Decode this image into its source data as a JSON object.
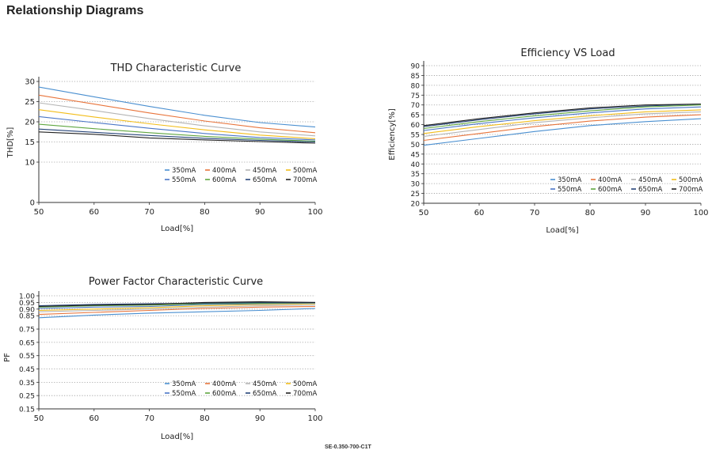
{
  "page": {
    "title": "Relationship Diagrams",
    "footer_model": "SE-0.350-700-C1T"
  },
  "chart_data": [
    {
      "id": "thd",
      "type": "line",
      "title": "THD Characteristic Curve",
      "xlabel": "Load[%]",
      "ylabel": "THD[%]",
      "xlim": [
        50,
        100
      ],
      "ylim": [
        0,
        30
      ],
      "x_ticks": [
        50,
        60,
        70,
        80,
        90,
        100
      ],
      "y_ticks": [
        0,
        10,
        15,
        20,
        25,
        30
      ],
      "grid": "horizontal dotted",
      "legend_position": "bottom-right",
      "x": [
        50,
        60,
        70,
        80,
        90,
        100
      ],
      "series": [
        {
          "name": "350mA",
          "color": "#4a8fd0",
          "values": [
            28.6,
            26.2,
            23.8,
            21.6,
            19.8,
            18.7
          ]
        },
        {
          "name": "400mA",
          "color": "#e8743b",
          "values": [
            26.6,
            24.4,
            22.2,
            20.2,
            18.5,
            17.3
          ]
        },
        {
          "name": "450mA",
          "color": "#b4b4b4",
          "values": [
            24.7,
            22.8,
            20.8,
            19.0,
            17.5,
            16.5
          ]
        },
        {
          "name": "500mA",
          "color": "#f2bd1a",
          "values": [
            23.0,
            21.2,
            19.5,
            18.0,
            16.7,
            15.8
          ]
        },
        {
          "name": "550mA",
          "color": "#4a76c6",
          "values": [
            21.3,
            19.8,
            18.4,
            17.1,
            16.1,
            15.5
          ]
        },
        {
          "name": "600mA",
          "color": "#5fa640",
          "values": [
            19.4,
            18.3,
            17.3,
            16.4,
            15.7,
            15.2
          ]
        },
        {
          "name": "650mA",
          "color": "#264478",
          "values": [
            18.2,
            17.4,
            16.6,
            15.9,
            15.4,
            15.0
          ]
        },
        {
          "name": "700mA",
          "color": "#222222",
          "values": [
            17.5,
            16.9,
            16.0,
            15.5,
            15.1,
            14.7
          ]
        }
      ]
    },
    {
      "id": "eff",
      "type": "line",
      "title": "Efficiency VS Load",
      "xlabel": "Load[%]",
      "ylabel": "Efficiency[%]",
      "xlim": [
        50,
        100
      ],
      "ylim": [
        20,
        90
      ],
      "x_ticks": [
        50,
        60,
        70,
        80,
        90,
        100
      ],
      "y_ticks": [
        20,
        25,
        30,
        35,
        40,
        45,
        50,
        55,
        60,
        65,
        70,
        75,
        80,
        85,
        90
      ],
      "grid": "horizontal dotted",
      "legend_position": "bottom-right",
      "x": [
        50,
        60,
        70,
        80,
        90,
        100
      ],
      "series": [
        {
          "name": "350mA",
          "color": "#4a8fd0",
          "values": [
            49.5,
            53.0,
            56.5,
            59.5,
            61.5,
            63.0
          ]
        },
        {
          "name": "400mA",
          "color": "#e8743b",
          "values": [
            52.0,
            55.5,
            59.0,
            61.8,
            63.8,
            65.0
          ]
        },
        {
          "name": "450mA",
          "color": "#b4b4b4",
          "values": [
            54.0,
            57.5,
            61.0,
            63.5,
            65.5,
            66.5
          ]
        },
        {
          "name": "500mA",
          "color": "#f2bd1a",
          "values": [
            55.5,
            59.0,
            62.0,
            64.5,
            66.5,
            67.5
          ]
        },
        {
          "name": "550mA",
          "color": "#4a76c6",
          "values": [
            57.0,
            60.5,
            63.5,
            66.0,
            68.0,
            69.0
          ]
        },
        {
          "name": "600mA",
          "color": "#5fa640",
          "values": [
            58.0,
            61.5,
            64.5,
            67.0,
            69.0,
            70.0
          ]
        },
        {
          "name": "650mA",
          "color": "#264478",
          "values": [
            59.0,
            62.5,
            65.5,
            68.0,
            69.5,
            70.5
          ]
        },
        {
          "name": "700mA",
          "color": "#222222",
          "values": [
            59.5,
            63.0,
            66.0,
            68.5,
            70.0,
            70.5
          ]
        }
      ]
    },
    {
      "id": "pf",
      "type": "line",
      "title": "Power Factor Characteristic Curve",
      "xlabel": "Load[%]",
      "ylabel": "PF",
      "xlim": [
        50,
        100
      ],
      "ylim": [
        0.15,
        1.0
      ],
      "x_ticks": [
        50,
        60,
        70,
        80,
        90,
        100
      ],
      "y_ticks": [
        0.15,
        0.25,
        0.35,
        0.45,
        0.55,
        0.65,
        0.75,
        0.85,
        0.9,
        0.95,
        1.0
      ],
      "y_tick_labels": [
        "0.15",
        "0.25",
        "0.35",
        "0.45",
        "0.55",
        "0.65",
        "0.75",
        "0.85",
        "0.90",
        "0.95",
        "1.00"
      ],
      "grid": "horizontal dotted",
      "legend_position": "bottom-right",
      "x": [
        50,
        60,
        70,
        80,
        90,
        100
      ],
      "series": [
        {
          "name": "350mA",
          "color": "#4a8fd0",
          "values": [
            0.835,
            0.855,
            0.87,
            0.88,
            0.89,
            0.905
          ]
        },
        {
          "name": "400mA",
          "color": "#e8743b",
          "values": [
            0.86,
            0.875,
            0.89,
            0.905,
            0.915,
            0.92
          ]
        },
        {
          "name": "450mA",
          "color": "#b4b4b4",
          "values": [
            0.88,
            0.89,
            0.9,
            0.915,
            0.925,
            0.93
          ]
        },
        {
          "name": "500mA",
          "color": "#f2bd1a",
          "values": [
            0.89,
            0.9,
            0.91,
            0.925,
            0.935,
            0.94
          ]
        },
        {
          "name": "550mA",
          "color": "#4a76c6",
          "values": [
            0.905,
            0.915,
            0.92,
            0.935,
            0.94,
            0.945
          ]
        },
        {
          "name": "600mA",
          "color": "#5fa640",
          "values": [
            0.915,
            0.925,
            0.93,
            0.94,
            0.945,
            0.948
          ]
        },
        {
          "name": "650mA",
          "color": "#264478",
          "values": [
            0.925,
            0.935,
            0.94,
            0.945,
            0.95,
            0.95
          ]
        },
        {
          "name": "700mA",
          "color": "#222222",
          "values": [
            0.92,
            0.93,
            0.935,
            0.95,
            0.955,
            0.95
          ]
        }
      ]
    }
  ]
}
